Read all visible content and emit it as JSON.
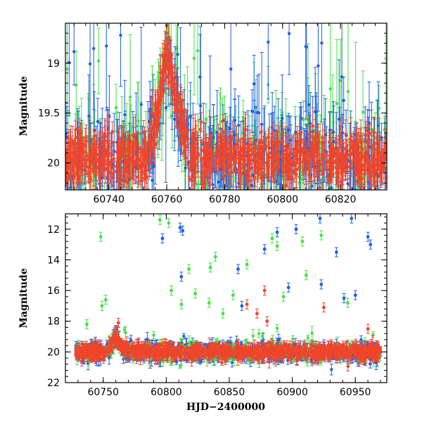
{
  "chart_data": [
    {
      "type": "scatter",
      "panel": "top",
      "xlabel": "",
      "ylabel": "Magnitude",
      "xlim": [
        60725,
        60836
      ],
      "ylim": [
        20.27,
        18.6
      ],
      "y_inverted": true,
      "xticks": [
        60740,
        60760,
        60780,
        60800,
        60820
      ],
      "xtick_labels": [
        "60740",
        "60760",
        "60780",
        "60800",
        "60820"
      ],
      "yticks": [
        19,
        19.5,
        20
      ],
      "ytick_labels": [
        "19",
        "19.5",
        "20"
      ],
      "series": [
        {
          "name": "blue",
          "color": "#1f5fe6"
        },
        {
          "name": "green",
          "color": "#44e044"
        },
        {
          "name": "red",
          "color": "#f0452b"
        }
      ],
      "baseline_mag": 19.95,
      "flare": {
        "peak_x": 60760,
        "peak_mag": 18.85,
        "rise_start_x": 60752,
        "decay_end_x": 60768
      }
    },
    {
      "type": "scatter",
      "panel": "bottom",
      "xlabel": "HJD−2400000",
      "ylabel": "Magnitude",
      "xlim": [
        60720,
        60975
      ],
      "ylim": [
        22,
        11
      ],
      "y_inverted": true,
      "xticks": [
        60750,
        60800,
        60850,
        60900,
        60950
      ],
      "xtick_labels": [
        "60750",
        "60800",
        "60850",
        "60900",
        "60950"
      ],
      "yticks": [
        12,
        14,
        16,
        18,
        20,
        22
      ],
      "ytick_labels": [
        "12",
        "14",
        "16",
        "18",
        "20",
        "22"
      ],
      "series": [
        {
          "name": "blue",
          "color": "#1f5fe6"
        },
        {
          "name": "green",
          "color": "#44e044"
        },
        {
          "name": "red",
          "color": "#f0452b"
        }
      ],
      "baseline_mag": 20.0,
      "outliers": [
        {
          "series": "green",
          "x": 60748,
          "y": 12.5
        },
        {
          "series": "green",
          "x": 60752,
          "y": 16.6
        },
        {
          "series": "green",
          "x": 60749,
          "y": 17.0
        },
        {
          "series": "green",
          "x": 60737,
          "y": 18.2
        },
        {
          "series": "red",
          "x": 60762,
          "y": 18.1
        },
        {
          "series": "green",
          "x": 60795,
          "y": 11.4
        },
        {
          "series": "blue",
          "x": 60797,
          "y": 12.6
        },
        {
          "series": "green",
          "x": 60802,
          "y": 11.6
        },
        {
          "series": "blue",
          "x": 60811,
          "y": 11.9
        },
        {
          "series": "blue",
          "x": 60813,
          "y": 12.1
        },
        {
          "series": "blue",
          "x": 60812,
          "y": 15.1
        },
        {
          "series": "green",
          "x": 60818,
          "y": 14.6
        },
        {
          "series": "green",
          "x": 60804,
          "y": 16.0
        },
        {
          "series": "green",
          "x": 60812,
          "y": 16.9
        },
        {
          "series": "green",
          "x": 60823,
          "y": 16.2
        },
        {
          "series": "green",
          "x": 60835,
          "y": 14.5
        },
        {
          "series": "green",
          "x": 60839,
          "y": 13.8
        },
        {
          "series": "green",
          "x": 60834,
          "y": 16.8
        },
        {
          "series": "green",
          "x": 60845,
          "y": 17.5
        },
        {
          "series": "green",
          "x": 60853,
          "y": 16.3
        },
        {
          "series": "blue",
          "x": 60857,
          "y": 14.6
        },
        {
          "series": "blue",
          "x": 60860,
          "y": 17.0
        },
        {
          "series": "green",
          "x": 60864,
          "y": 14.3
        },
        {
          "series": "red",
          "x": 60864,
          "y": 16.9
        },
        {
          "series": "blue",
          "x": 60878,
          "y": 13.3
        },
        {
          "series": "red",
          "x": 60878,
          "y": 16.0
        },
        {
          "series": "red",
          "x": 60872,
          "y": 17.5
        },
        {
          "series": "green",
          "x": 60884,
          "y": 12.6
        },
        {
          "series": "green",
          "x": 60888,
          "y": 13.1
        },
        {
          "series": "blue",
          "x": 60888,
          "y": 12.2
        },
        {
          "series": "green",
          "x": 60893,
          "y": 16.4
        },
        {
          "series": "blue",
          "x": 60897,
          "y": 15.8
        },
        {
          "series": "blue",
          "x": 60903,
          "y": 12.0
        },
        {
          "series": "green",
          "x": 60908,
          "y": 12.8
        },
        {
          "series": "green",
          "x": 60911,
          "y": 15.0
        },
        {
          "series": "blue",
          "x": 60922,
          "y": 11.3
        },
        {
          "series": "green",
          "x": 60923,
          "y": 12.4
        },
        {
          "series": "blue",
          "x": 60923,
          "y": 15.6
        },
        {
          "series": "blue",
          "x": 60935,
          "y": 13.5
        },
        {
          "series": "blue",
          "x": 60941,
          "y": 16.5
        },
        {
          "series": "blue",
          "x": 60947,
          "y": 11.3
        },
        {
          "series": "blue",
          "x": 60950,
          "y": 16.3
        },
        {
          "series": "green",
          "x": 60944,
          "y": 16.8
        },
        {
          "series": "blue",
          "x": 60960,
          "y": 12.5
        },
        {
          "series": "blue",
          "x": 60962,
          "y": 13.0
        },
        {
          "series": "red",
          "x": 60960,
          "y": 18.5
        },
        {
          "series": "red",
          "x": 60880,
          "y": 18.0
        },
        {
          "series": "red",
          "x": 60925,
          "y": 17.1
        }
      ]
    }
  ]
}
